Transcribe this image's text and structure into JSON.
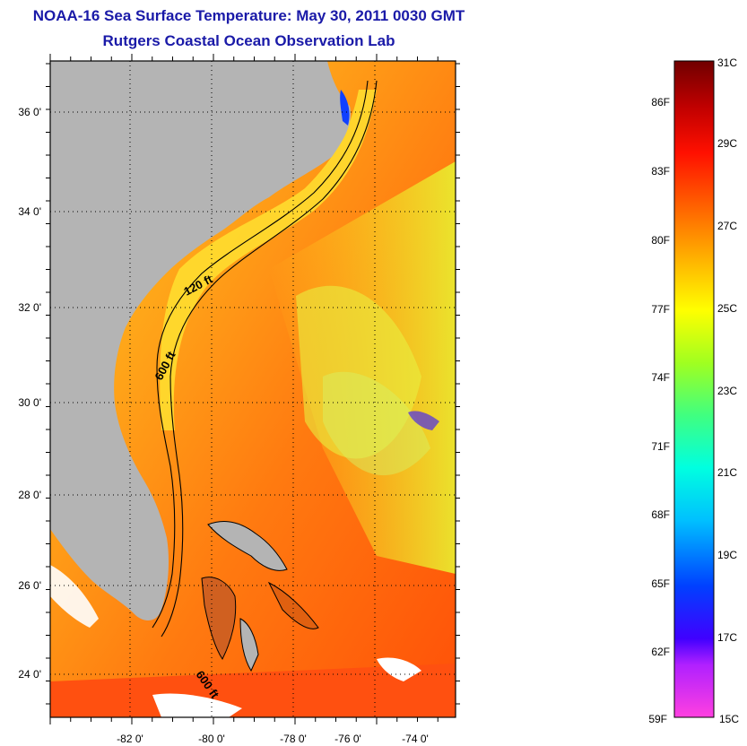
{
  "header": {
    "title": "NOAA-16 Sea Surface Temperature:  May 30, 2011 0030 GMT",
    "subtitle": "Rutgers Coastal Ocean Observation Lab"
  },
  "map": {
    "lon_labels": [
      "-82 0'",
      "-80 0'",
      "-78 0'",
      "-76 0'",
      "-74 0'"
    ],
    "lat_labels": [
      "36 0'",
      "34 0'",
      "32 0'",
      "30 0'",
      "28 0'",
      "26 0'",
      "24 0'"
    ],
    "isobaths": [
      "120 ft",
      "600 ft",
      "600 ft"
    ]
  },
  "colorbar": {
    "celsius": [
      "31C",
      "29C",
      "27C",
      "25C",
      "23C",
      "21C",
      "19C",
      "17C",
      "15C"
    ],
    "fahrenheit": [
      "86F",
      "83F",
      "80F",
      "77F",
      "74F",
      "71F",
      "68F",
      "65F",
      "62F",
      "59F"
    ],
    "colors": [
      "#ff40e0",
      "#8000ff",
      "#0000ff",
      "#00a0ff",
      "#00ffff",
      "#40ff80",
      "#b0ff20",
      "#ffff00",
      "#ffb000",
      "#ff6000",
      "#ff0000",
      "#c00000",
      "#800000"
    ]
  }
}
